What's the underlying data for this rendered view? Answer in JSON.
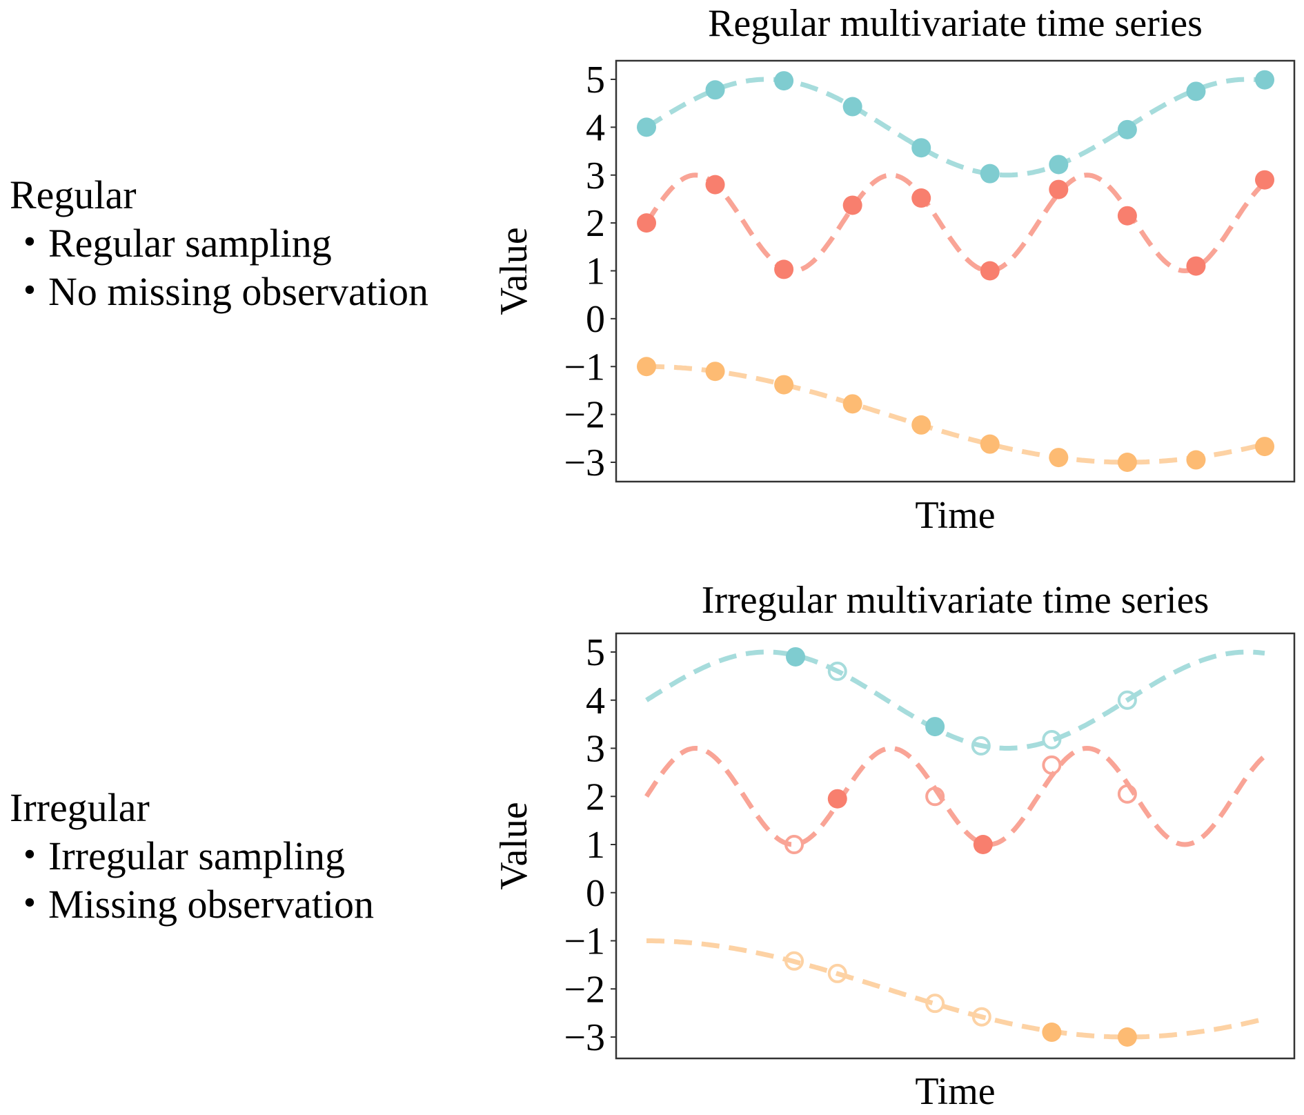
{
  "sections": [
    {
      "heading": "Regular",
      "bullets": [
        "Regular sampling",
        "No missing observation"
      ],
      "bullet_glyph": "・"
    },
    {
      "heading": "Irregular",
      "bullets": [
        "Irregular sampling",
        "Missing observation"
      ],
      "bullet_glyph": "・"
    }
  ],
  "colors": {
    "teal": "#7fccd0",
    "teal_line": "#a6dcdc",
    "red": "#f87f6e",
    "red_line": "#f9a496",
    "orange": "#fdbb73",
    "orange_line": "#fdd2a4",
    "axis": "#333333"
  },
  "chart_data": [
    {
      "type": "line",
      "title": "Regular multivariate time series",
      "xlabel": "Time",
      "ylabel": "Value",
      "ylim": [
        -3.4,
        5.4
      ],
      "xlim": [
        -0.4,
        9.4
      ],
      "yticks": [
        5,
        4,
        3,
        2,
        1,
        0,
        -1,
        -2,
        -3
      ],
      "ytick_labels": [
        "5",
        "4",
        "3",
        "2",
        "1",
        "0",
        "−1",
        "−2",
        "−3"
      ],
      "xticks": [],
      "grid": false,
      "legend": "none",
      "curve_t_range": [
        0,
        9
      ],
      "series": [
        {
          "name": "teal",
          "curve": {
            "kind": "sin",
            "offset": 4,
            "amplitude": 1,
            "period": 7,
            "phase": 0
          },
          "points": [
            {
              "t": 0,
              "v": 4.0,
              "observed": true
            },
            {
              "t": 1,
              "v": 4.78,
              "observed": true
            },
            {
              "t": 2,
              "v": 4.97,
              "observed": true
            },
            {
              "t": 3,
              "v": 4.43,
              "observed": true
            },
            {
              "t": 4,
              "v": 3.57,
              "observed": true
            },
            {
              "t": 5,
              "v": 3.03,
              "observed": true
            },
            {
              "t": 6,
              "v": 3.22,
              "observed": true
            },
            {
              "t": 7,
              "v": 3.95,
              "observed": true
            },
            {
              "t": 8,
              "v": 4.75,
              "observed": true
            },
            {
              "t": 9,
              "v": 4.99,
              "observed": true
            }
          ]
        },
        {
          "name": "red",
          "curve": {
            "kind": "sin",
            "offset": 2,
            "amplitude": 1,
            "period": 2.85,
            "phase": 0
          },
          "points": [
            {
              "t": 0,
              "v": 2.0,
              "observed": true
            },
            {
              "t": 1,
              "v": 2.8,
              "observed": true
            },
            {
              "t": 2,
              "v": 1.03,
              "observed": true
            },
            {
              "t": 3,
              "v": 2.37,
              "observed": true
            },
            {
              "t": 4,
              "v": 2.52,
              "observed": true
            },
            {
              "t": 5,
              "v": 1.0,
              "observed": true
            },
            {
              "t": 6,
              "v": 2.7,
              "observed": true
            },
            {
              "t": 7,
              "v": 2.15,
              "observed": true
            },
            {
              "t": 8,
              "v": 1.1,
              "observed": true
            },
            {
              "t": 9,
              "v": 2.9,
              "observed": true
            }
          ]
        },
        {
          "name": "orange",
          "curve": {
            "kind": "cos",
            "offset": -2,
            "amplitude": 1,
            "period": 14,
            "phase": 0
          },
          "points": [
            {
              "t": 0,
              "v": -1.0,
              "observed": true
            },
            {
              "t": 1,
              "v": -1.1,
              "observed": true
            },
            {
              "t": 2,
              "v": -1.38,
              "observed": true
            },
            {
              "t": 3,
              "v": -1.78,
              "observed": true
            },
            {
              "t": 4,
              "v": -2.22,
              "observed": true
            },
            {
              "t": 5,
              "v": -2.62,
              "observed": true
            },
            {
              "t": 6,
              "v": -2.9,
              "observed": true
            },
            {
              "t": 7,
              "v": -3.0,
              "observed": true
            },
            {
              "t": 8,
              "v": -2.95,
              "observed": true
            },
            {
              "t": 9,
              "v": -2.67,
              "observed": true
            }
          ]
        }
      ]
    },
    {
      "type": "line",
      "title": "Irregular multivariate time series",
      "xlabel": "Time",
      "ylabel": "Value",
      "ylim": [
        -3.4,
        5.3
      ],
      "xlim": [
        -0.4,
        9.4
      ],
      "yticks": [
        5,
        4,
        3,
        2,
        1,
        0,
        -1,
        -2,
        -3
      ],
      "ytick_labels": [
        "5",
        "4",
        "3",
        "2",
        "1",
        "0",
        "−1",
        "−2",
        "−3"
      ],
      "xticks": [],
      "grid": false,
      "legend": "none",
      "curve_t_range": [
        0,
        9
      ],
      "series": [
        {
          "name": "teal",
          "curve": {
            "kind": "sin",
            "offset": 4,
            "amplitude": 1,
            "period": 7,
            "phase": 0
          },
          "points": [
            {
              "t": 2.17,
              "v": 4.9,
              "observed": true
            },
            {
              "t": 2.78,
              "v": 4.6,
              "observed": false
            },
            {
              "t": 4.2,
              "v": 3.45,
              "observed": true
            },
            {
              "t": 4.87,
              "v": 3.05,
              "observed": false
            },
            {
              "t": 5.9,
              "v": 3.18,
              "observed": false
            },
            {
              "t": 7.0,
              "v": 4.0,
              "observed": false
            }
          ]
        },
        {
          "name": "red",
          "curve": {
            "kind": "sin",
            "offset": 2,
            "amplitude": 1,
            "period": 2.85,
            "phase": 0
          },
          "points": [
            {
              "t": 2.15,
              "v": 1.0,
              "observed": false
            },
            {
              "t": 2.78,
              "v": 1.95,
              "observed": true
            },
            {
              "t": 4.2,
              "v": 2.0,
              "observed": false
            },
            {
              "t": 4.9,
              "v": 1.0,
              "observed": true
            },
            {
              "t": 5.9,
              "v": 2.65,
              "observed": false
            },
            {
              "t": 7.0,
              "v": 2.05,
              "observed": false
            }
          ]
        },
        {
          "name": "orange",
          "curve": {
            "kind": "cos",
            "offset": -2,
            "amplitude": 1,
            "period": 14,
            "phase": 0
          },
          "points": [
            {
              "t": 2.15,
              "v": -1.42,
              "observed": false
            },
            {
              "t": 2.78,
              "v": -1.68,
              "observed": false
            },
            {
              "t": 4.2,
              "v": -2.3,
              "observed": false
            },
            {
              "t": 4.88,
              "v": -2.58,
              "observed": false
            },
            {
              "t": 5.9,
              "v": -2.9,
              "observed": true
            },
            {
              "t": 7.0,
              "v": -3.0,
              "observed": true
            }
          ]
        }
      ]
    }
  ]
}
